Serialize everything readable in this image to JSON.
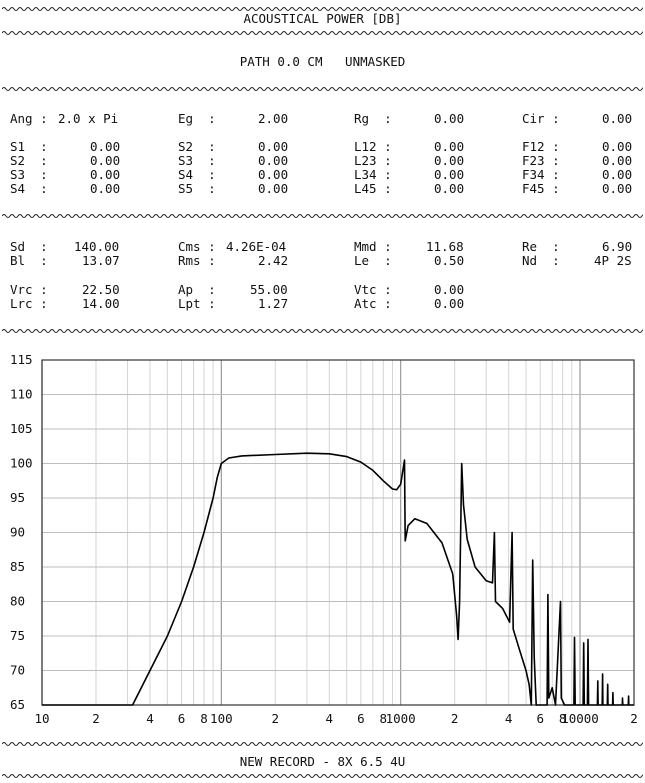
{
  "header": {
    "title": "ACOUSTICAL POWER [DB]",
    "path": "PATH 0.0 CM   UNMASKED"
  },
  "params": {
    "ang_label": "Ang :",
    "ang_value": "2.0 x Pi",
    "eg_label": "Eg  :",
    "eg_value": "2.00",
    "rg_label": "Rg  :",
    "rg_value": "0.00",
    "cir_label": "Cir :",
    "cir_value": "0.00",
    "s1_label": "S1  :",
    "s1_value": "0.00",
    "s2_label": "S2  :",
    "s2_value": "0.00",
    "s3_label": "S3  :",
    "s3_value": "0.00",
    "s4_label": "S4  :",
    "s4_value": "0.00",
    "s2b_label": "S2  :",
    "s2b_value": "0.00",
    "s3b_label": "S3  :",
    "s3b_value": "0.00",
    "s4b_label": "S4  :",
    "s4b_value": "0.00",
    "s5_label": "S5  :",
    "s5_value": "0.00",
    "l12_label": "L12 :",
    "l12_value": "0.00",
    "l23_label": "L23 :",
    "l23_value": "0.00",
    "l34_label": "L34 :",
    "l34_value": "0.00",
    "l45_label": "L45 :",
    "l45_value": "0.00",
    "f12_label": "F12 :",
    "f12_value": "0.00",
    "f23_label": "F23 :",
    "f23_value": "0.00",
    "f34_label": "F34 :",
    "f34_value": "0.00",
    "f45_label": "F45 :",
    "f45_value": "0.00"
  },
  "driver": {
    "sd_label": "Sd  :",
    "sd_value": "140.00",
    "bl_label": "Bl  :",
    "bl_value": "13.07",
    "cms_label": "Cms :",
    "cms_value": "4.26E-04",
    "rms_label": "Rms :",
    "rms_value": "2.42",
    "mmd_label": "Mmd :",
    "mmd_value": "11.68",
    "le_label": "Le  :",
    "le_value": "0.50",
    "re_label": "Re  :",
    "re_value": "6.90",
    "nd_label": "Nd  :",
    "nd_value": "4P 2S",
    "vrc_label": "Vrc :",
    "vrc_value": "22.50",
    "lrc_label": "Lrc :",
    "lrc_value": "14.00",
    "ap_label": "Ap  :",
    "ap_value": "55.00",
    "lpt_label": "Lpt :",
    "lpt_value": "1.27",
    "vtc_label": "Vtc :",
    "vtc_value": "0.00",
    "atc_label": "Atc :",
    "atc_value": "0.00"
  },
  "footer": {
    "record": "NEW RECORD - 8X 6.5 4U"
  },
  "chart_data": {
    "type": "line",
    "x_scale": "log",
    "xlim": [
      10,
      20000
    ],
    "ylim": [
      65,
      115
    ],
    "yticks": [
      65,
      70,
      75,
      80,
      85,
      90,
      95,
      100,
      105,
      110,
      115
    ],
    "xtick_labels": [
      {
        "x": 10,
        "label": "10"
      },
      {
        "x": 20,
        "label": "2"
      },
      {
        "x": 40,
        "label": "4"
      },
      {
        "x": 60,
        "label": "6"
      },
      {
        "x": 80,
        "label": "8"
      },
      {
        "x": 100,
        "label": "100"
      },
      {
        "x": 200,
        "label": "2"
      },
      {
        "x": 400,
        "label": "4"
      },
      {
        "x": 600,
        "label": "6"
      },
      {
        "x": 800,
        "label": "8"
      },
      {
        "x": 1000,
        "label": "1000"
      },
      {
        "x": 2000,
        "label": "2"
      },
      {
        "x": 4000,
        "label": "4"
      },
      {
        "x": 6000,
        "label": "6"
      },
      {
        "x": 8000,
        "label": "8"
      },
      {
        "x": 10000,
        "label": "10000"
      },
      {
        "x": 20000,
        "label": "2"
      }
    ],
    "grid": true,
    "series": [
      {
        "points": [
          [
            10,
            65
          ],
          [
            32,
            65
          ],
          [
            40,
            70
          ],
          [
            50,
            75
          ],
          [
            60,
            80
          ],
          [
            70,
            85
          ],
          [
            80,
            90
          ],
          [
            90,
            95
          ],
          [
            95,
            98
          ],
          [
            100,
            100
          ],
          [
            110,
            100.8
          ],
          [
            130,
            101.1
          ],
          [
            200,
            101.3
          ],
          [
            300,
            101.5
          ],
          [
            400,
            101.4
          ],
          [
            500,
            101
          ],
          [
            600,
            100.2
          ],
          [
            700,
            99
          ],
          [
            800,
            97.5
          ],
          [
            900,
            96.3
          ],
          [
            950,
            96.2
          ],
          [
            1000,
            97
          ],
          [
            1050,
            100.5
          ],
          [
            1060,
            88.8
          ],
          [
            1100,
            91
          ],
          [
            1200,
            92
          ],
          [
            1400,
            91.3
          ],
          [
            1700,
            88.5
          ],
          [
            1950,
            84
          ],
          [
            2050,
            78
          ],
          [
            2090,
            74.5
          ],
          [
            2130,
            80
          ],
          [
            2190,
            100
          ],
          [
            2240,
            94
          ],
          [
            2350,
            89
          ],
          [
            2600,
            85
          ],
          [
            3000,
            83
          ],
          [
            3250,
            82.7
          ],
          [
            3330,
            90
          ],
          [
            3380,
            80
          ],
          [
            3700,
            79
          ],
          [
            4050,
            77
          ],
          [
            4180,
            90
          ],
          [
            4240,
            76
          ],
          [
            4600,
            73
          ],
          [
            5000,
            70
          ],
          [
            5200,
            68
          ],
          [
            5350,
            65
          ],
          [
            5450,
            86
          ],
          [
            5550,
            72
          ],
          [
            5700,
            65
          ],
          [
            6550,
            65
          ],
          [
            6620,
            81
          ],
          [
            6700,
            66
          ],
          [
            7000,
            67.5
          ],
          [
            7300,
            65
          ],
          [
            7780,
            80
          ],
          [
            7860,
            66
          ],
          [
            8200,
            65
          ],
          [
            9250,
            65
          ],
          [
            9320,
            74.8
          ],
          [
            9400,
            65
          ],
          [
            10400,
            65
          ],
          [
            10480,
            74
          ],
          [
            10560,
            65
          ],
          [
            11000,
            65
          ],
          [
            11080,
            74.5
          ],
          [
            11160,
            65
          ],
          [
            12500,
            65
          ],
          [
            12560,
            68.5
          ],
          [
            12620,
            65
          ],
          [
            13300,
            65
          ],
          [
            13360,
            69.5
          ],
          [
            13420,
            65
          ],
          [
            14200,
            65
          ],
          [
            14260,
            68
          ],
          [
            14320,
            65
          ],
          [
            15200,
            65
          ],
          [
            15260,
            66.8
          ],
          [
            15320,
            65
          ],
          [
            17200,
            65
          ],
          [
            17260,
            66
          ],
          [
            17320,
            65
          ],
          [
            18600,
            65
          ],
          [
            18660,
            66.3
          ],
          [
            18720,
            65
          ],
          [
            20000,
            65
          ]
        ]
      }
    ]
  }
}
